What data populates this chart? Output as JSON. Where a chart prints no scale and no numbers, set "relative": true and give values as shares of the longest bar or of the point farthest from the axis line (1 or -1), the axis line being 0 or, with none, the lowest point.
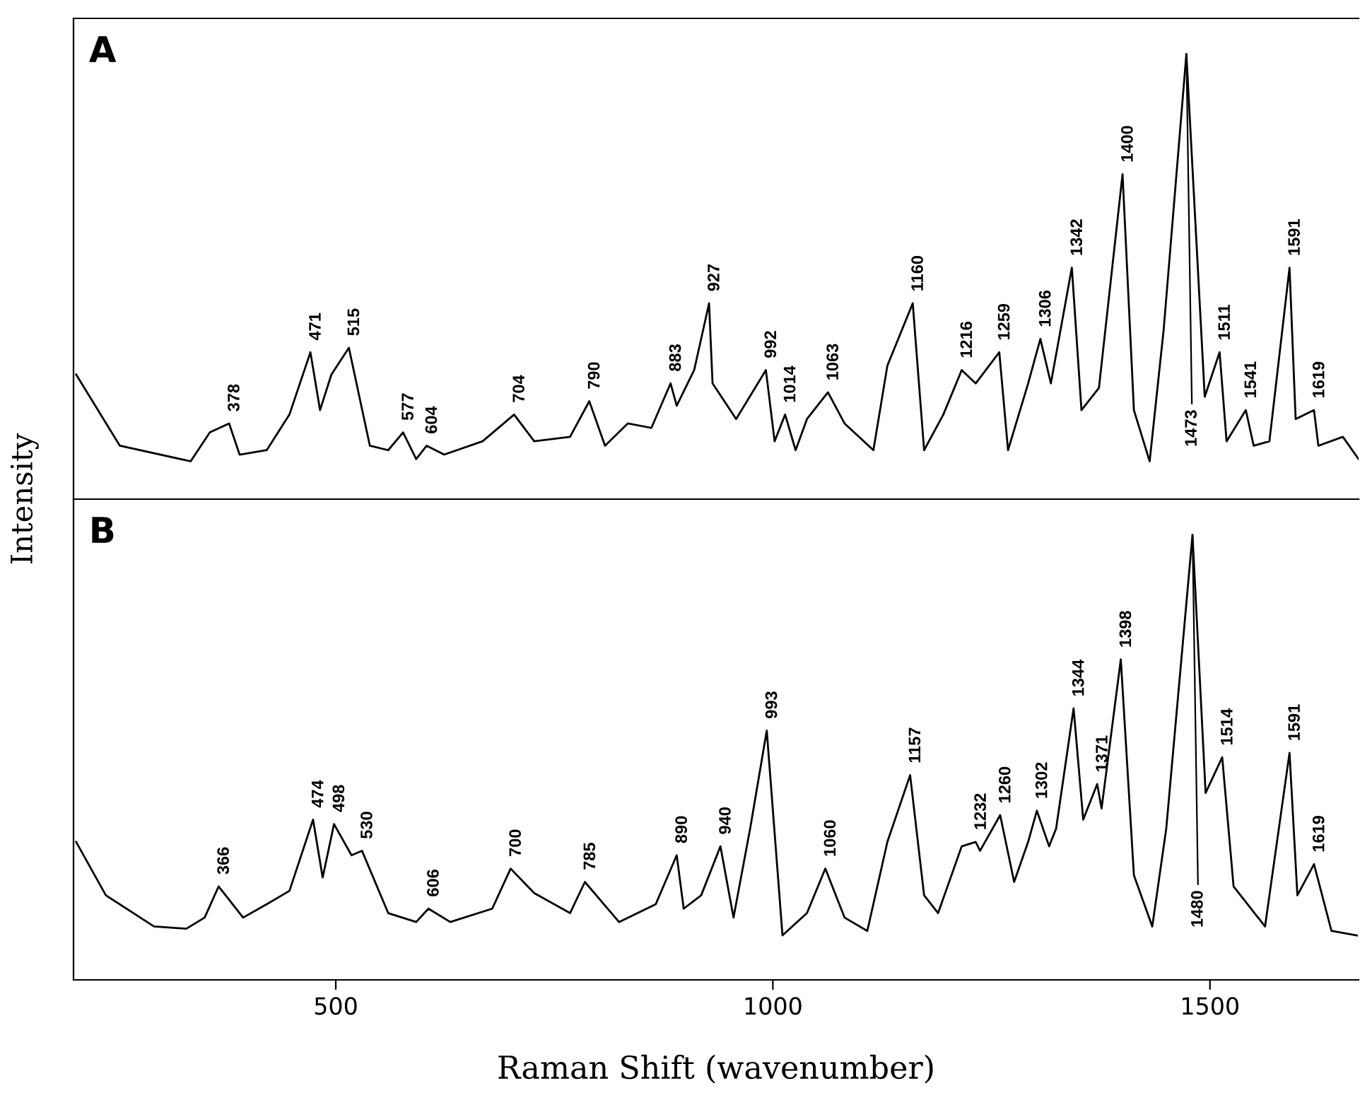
{
  "chart_data": [
    {
      "type": "line",
      "title": "A",
      "ylabel": "Intensity",
      "relative": true,
      "xlim": [
        200,
        1670
      ],
      "xticks": [
        500,
        1000,
        1500
      ],
      "tick_labels": false,
      "grid": false,
      "legend": false,
      "marker": "none",
      "line_style": "solid",
      "series": [
        {
          "color": "#000000",
          "x": [
            203,
            253,
            334,
            356,
            378,
            390,
            421,
            447,
            471,
            482,
            495,
            515,
            539,
            560,
            577,
            592,
            604,
            624,
            668,
            704,
            727,
            768,
            790,
            808,
            834,
            861,
            883,
            890,
            910,
            927,
            931,
            958,
            992,
            1002,
            1014,
            1026,
            1039,
            1063,
            1082,
            1115,
            1131,
            1160,
            1173,
            1195,
            1216,
            1232,
            1259,
            1269,
            1292,
            1306,
            1318,
            1342,
            1353,
            1373,
            1400,
            1413,
            1431,
            1447,
            1473,
            1494,
            1511,
            1519,
            1541,
            1550,
            1568,
            1591,
            1598,
            1619,
            1624,
            1652,
            1670
          ],
          "values": [
            0.28,
            0.12,
            0.085,
            0.15,
            0.17,
            0.1,
            0.11,
            0.19,
            0.33,
            0.2,
            0.28,
            0.34,
            0.12,
            0.11,
            0.15,
            0.09,
            0.12,
            0.1,
            0.13,
            0.19,
            0.13,
            0.14,
            0.22,
            0.12,
            0.17,
            0.16,
            0.26,
            0.21,
            0.29,
            0.44,
            0.26,
            0.18,
            0.29,
            0.13,
            0.19,
            0.11,
            0.18,
            0.24,
            0.17,
            0.11,
            0.3,
            0.44,
            0.11,
            0.19,
            0.29,
            0.26,
            0.33,
            0.11,
            0.26,
            0.36,
            0.26,
            0.52,
            0.2,
            0.25,
            0.73,
            0.2,
            0.085,
            0.38,
            1.0,
            0.23,
            0.33,
            0.13,
            0.2,
            0.12,
            0.13,
            0.52,
            0.18,
            0.2,
            0.12,
            0.14,
            0.09
          ]
        }
      ],
      "annotations": [
        {
          "text": "378",
          "x": 378,
          "y": 0.17
        },
        {
          "text": "471",
          "x": 471,
          "y": 0.33
        },
        {
          "text": "515",
          "x": 515,
          "y": 0.34
        },
        {
          "text": "577",
          "x": 577,
          "y": 0.15
        },
        {
          "text": "604",
          "x": 604,
          "y": 0.12
        },
        {
          "text": "704",
          "x": 704,
          "y": 0.19
        },
        {
          "text": "790",
          "x": 790,
          "y": 0.22
        },
        {
          "text": "883",
          "x": 883,
          "y": 0.26
        },
        {
          "text": "927",
          "x": 927,
          "y": 0.44
        },
        {
          "text": "992",
          "x": 992,
          "y": 0.29
        },
        {
          "text": "1014",
          "x": 1014,
          "y": 0.19
        },
        {
          "text": "1063",
          "x": 1063,
          "y": 0.24
        },
        {
          "text": "1160",
          "x": 1160,
          "y": 0.44
        },
        {
          "text": "1216",
          "x": 1216,
          "y": 0.29
        },
        {
          "text": "1259",
          "x": 1259,
          "y": 0.33
        },
        {
          "text": "1306",
          "x": 1306,
          "y": 0.36
        },
        {
          "text": "1342",
          "x": 1342,
          "y": 0.52
        },
        {
          "text": "1400",
          "x": 1400,
          "y": 0.73
        },
        {
          "text": "1473",
          "x": 1473,
          "y": 1.0
        },
        {
          "text": "1511",
          "x": 1511,
          "y": 0.33
        },
        {
          "text": "1541",
          "x": 1541,
          "y": 0.2
        },
        {
          "text": "1591",
          "x": 1591,
          "y": 0.52
        },
        {
          "text": "1619",
          "x": 1619,
          "y": 0.2
        }
      ]
    },
    {
      "type": "line",
      "title": "B",
      "xlabel": "Raman Shift (wavenumber)",
      "relative": true,
      "xlim": [
        200,
        1670
      ],
      "xticks": [
        500,
        1000,
        1500
      ],
      "tick_labels": "x",
      "grid": false,
      "legend": false,
      "marker": "none",
      "line_style": "solid",
      "series": [
        {
          "color": "#000000",
          "x": [
            203,
            237,
            292,
            329,
            350,
            366,
            394,
            421,
            447,
            474,
            485,
            498,
            518,
            530,
            560,
            592,
            606,
            631,
            679,
            700,
            727,
            768,
            785,
            824,
            866,
            890,
            898,
            918,
            940,
            955,
            974,
            993,
            1011,
            1039,
            1060,
            1082,
            1108,
            1131,
            1157,
            1173,
            1189,
            1216,
            1232,
            1237,
            1260,
            1276,
            1292,
            1302,
            1316,
            1324,
            1344,
            1355,
            1371,
            1376,
            1398,
            1413,
            1434,
            1450,
            1480,
            1495,
            1514,
            1527,
            1563,
            1591,
            1600,
            1619,
            1639,
            1668
          ],
          "values": [
            0.31,
            0.19,
            0.12,
            0.115,
            0.14,
            0.21,
            0.14,
            0.17,
            0.2,
            0.36,
            0.23,
            0.35,
            0.28,
            0.29,
            0.15,
            0.13,
            0.16,
            0.13,
            0.16,
            0.25,
            0.195,
            0.15,
            0.22,
            0.13,
            0.17,
            0.28,
            0.16,
            0.19,
            0.3,
            0.14,
            0.34,
            0.56,
            0.1,
            0.15,
            0.25,
            0.14,
            0.11,
            0.31,
            0.46,
            0.19,
            0.15,
            0.3,
            0.31,
            0.29,
            0.37,
            0.22,
            0.31,
            0.38,
            0.3,
            0.34,
            0.61,
            0.36,
            0.44,
            0.385,
            0.72,
            0.235,
            0.12,
            0.34,
            1.0,
            0.42,
            0.5,
            0.21,
            0.12,
            0.51,
            0.19,
            0.26,
            0.11,
            0.1
          ]
        }
      ],
      "annotations": [
        {
          "text": "366",
          "x": 366,
          "y": 0.21
        },
        {
          "text": "474",
          "x": 474,
          "y": 0.36
        },
        {
          "text": "498",
          "x": 498,
          "y": 0.35
        },
        {
          "text": "530",
          "x": 530,
          "y": 0.29
        },
        {
          "text": "606",
          "x": 606,
          "y": 0.16
        },
        {
          "text": "700",
          "x": 700,
          "y": 0.25
        },
        {
          "text": "785",
          "x": 785,
          "y": 0.22
        },
        {
          "text": "890",
          "x": 890,
          "y": 0.28
        },
        {
          "text": "940",
          "x": 940,
          "y": 0.3
        },
        {
          "text": "993",
          "x": 993,
          "y": 0.56
        },
        {
          "text": "1060",
          "x": 1060,
          "y": 0.25
        },
        {
          "text": "1157",
          "x": 1157,
          "y": 0.46
        },
        {
          "text": "1232",
          "x": 1232,
          "y": 0.31
        },
        {
          "text": "1260",
          "x": 1260,
          "y": 0.37
        },
        {
          "text": "1302",
          "x": 1302,
          "y": 0.38
        },
        {
          "text": "1344",
          "x": 1344,
          "y": 0.61
        },
        {
          "text": "1371",
          "x": 1371,
          "y": 0.44
        },
        {
          "text": "1398",
          "x": 1398,
          "y": 0.72
        },
        {
          "text": "1480",
          "x": 1480,
          "y": 1.0
        },
        {
          "text": "1514",
          "x": 1514,
          "y": 0.5
        },
        {
          "text": "1591",
          "x": 1591,
          "y": 0.51
        },
        {
          "text": "1619",
          "x": 1619,
          "y": 0.26
        }
      ]
    }
  ]
}
